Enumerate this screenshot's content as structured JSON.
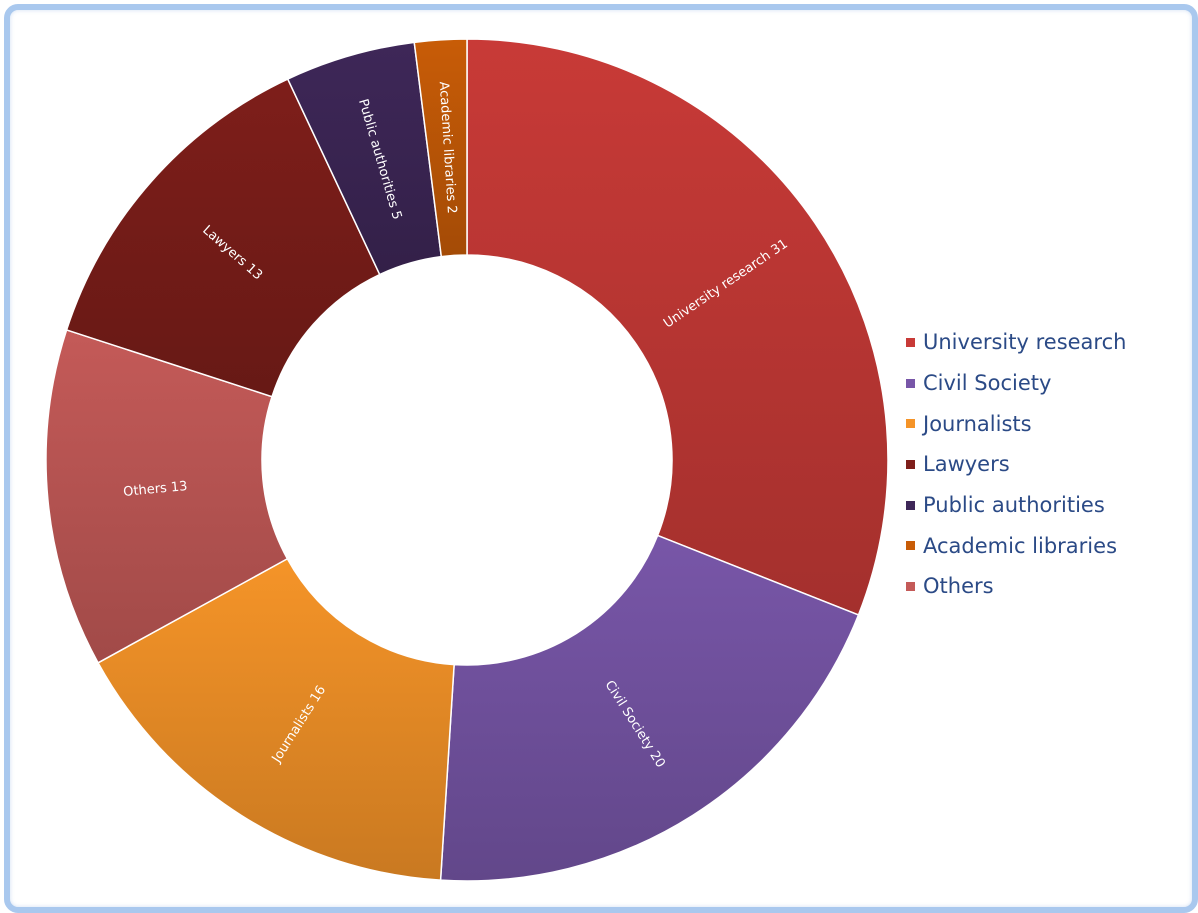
{
  "chart_data": {
    "type": "pie",
    "subtype": "donut",
    "slices": [
      {
        "label": "University research",
        "value": 31,
        "color": "#c83a37",
        "text": "University research 31"
      },
      {
        "label": "Civil Society",
        "value": 20,
        "color": "#7856a8",
        "text": "Civil Society 20"
      },
      {
        "label": "Journalists",
        "value": 16,
        "color": "#f59428",
        "text": "Journalists 16"
      },
      {
        "label": "Others",
        "value": 13,
        "color": "#c45a58",
        "text": "Others 13"
      },
      {
        "label": "Lawyers",
        "value": 13,
        "color": "#7e1e1a",
        "text": "Lawyers 13"
      },
      {
        "label": "Public authorities",
        "value": 5,
        "color": "#3e2758",
        "text": "Public authorities 5"
      },
      {
        "label": "Academic libraries",
        "value": 2,
        "color": "#c85c07",
        "text": "Academic libraries 2"
      }
    ],
    "legend": {
      "position": "right",
      "items": [
        {
          "label": "University research",
          "color": "#c83a37"
        },
        {
          "label": "Civil Society",
          "color": "#7856a8"
        },
        {
          "label": "Journalists",
          "color": "#f59428"
        },
        {
          "label": "Lawyers",
          "color": "#7e1e1a"
        },
        {
          "label": "Public authorities",
          "color": "#3e2758"
        },
        {
          "label": "Academic libraries",
          "color": "#c85c07"
        },
        {
          "label": "Others",
          "color": "#c45a58"
        }
      ]
    }
  }
}
